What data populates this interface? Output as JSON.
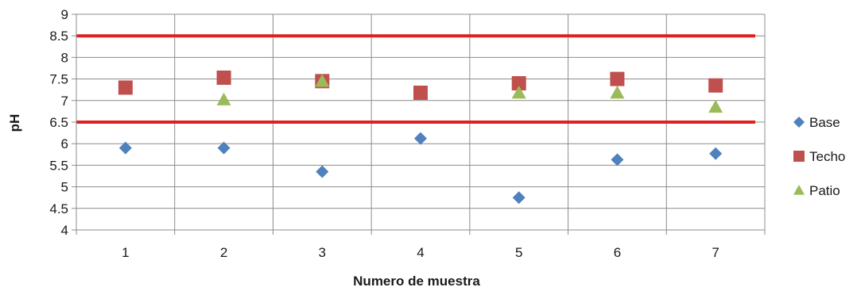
{
  "chart_data": {
    "type": "scatter",
    "title": "",
    "xlabel": "Numero de muestra",
    "ylabel": "pH",
    "categories": [
      "1",
      "2",
      "3",
      "4",
      "5",
      "6",
      "7"
    ],
    "ylim": [
      4,
      9
    ],
    "yticks": [
      "4",
      "4.5",
      "5",
      "5.5",
      "6",
      "6.5",
      "7",
      "7.5",
      "8",
      "8.5",
      "9"
    ],
    "grid": true,
    "legend_position": "right",
    "series": [
      {
        "name": "Base",
        "marker": "diamond",
        "color": "#4F81BD",
        "values": [
          5.9,
          5.9,
          5.35,
          6.12,
          4.75,
          5.63,
          5.77
        ]
      },
      {
        "name": "Techo",
        "marker": "square",
        "color": "#C0504D",
        "values": [
          7.3,
          7.53,
          7.45,
          7.18,
          7.4,
          7.5,
          7.35
        ]
      },
      {
        "name": "Patio",
        "marker": "triangle",
        "color": "#9BBB59",
        "values": [
          null,
          7.02,
          7.45,
          null,
          7.18,
          7.18,
          6.85
        ]
      }
    ],
    "reference_lines": [
      {
        "value": 6.5,
        "color": "#E02020"
      },
      {
        "value": 8.5,
        "color": "#E02020"
      }
    ]
  }
}
